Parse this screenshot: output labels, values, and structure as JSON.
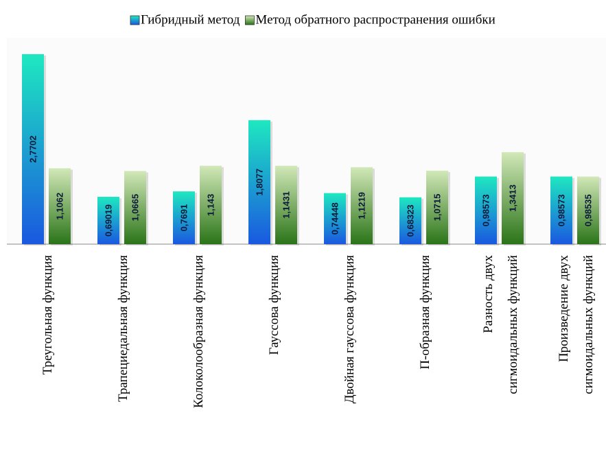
{
  "chart_data": {
    "type": "bar",
    "categories": [
      "Треугольная функция",
      "Трапециедальная функция",
      "Колоколообразная функция",
      "Гауссова функция",
      "Двойная гауссова функция",
      "П-образная функция",
      "Разность двух\nсигмоидальных функций",
      "Произведение двух\nсигмоидальных функций"
    ],
    "series": [
      {
        "name": "Гибридный метод",
        "color": [
          "#1ee8c0",
          "#1a58e0"
        ],
        "values": [
          2.7702,
          0.69019,
          0.7691,
          1.8077,
          0.74448,
          0.68323,
          0.98573,
          0.98573
        ],
        "value_labels": [
          "2,7702",
          "0,69019",
          "0,7691",
          "1,8077",
          "0,74448",
          "0,68323",
          "0,98573",
          "0,98573"
        ]
      },
      {
        "name": "Метод обратного распространения ошибки",
        "color": [
          "#d2e8b8",
          "#2a7418"
        ],
        "values": [
          1.1062,
          1.0665,
          1.143,
          1.1431,
          1.1219,
          1.0715,
          1.3413,
          0.98535
        ],
        "value_labels": [
          "1,1062",
          "1,0665",
          "1,143",
          "1,1431",
          "1,1219",
          "1,0715",
          "1,3413",
          "0,98535"
        ]
      }
    ],
    "ylim": [
      0,
      3
    ],
    "grid": false,
    "legend": "top"
  }
}
